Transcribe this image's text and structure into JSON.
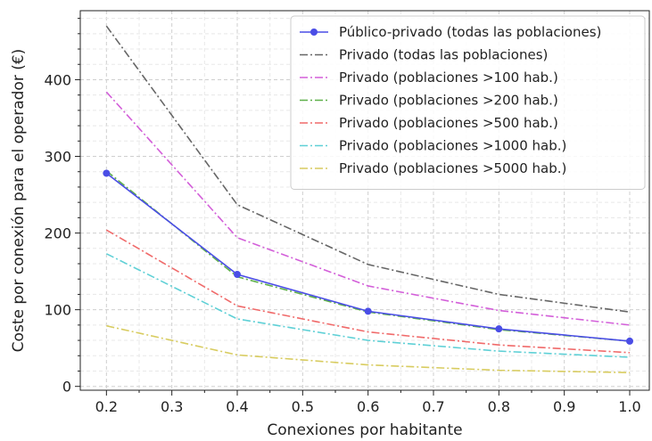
{
  "chart_data": {
    "type": "line",
    "xlabel": "Conexiones por habitante",
    "ylabel": "Coste por conexión para el operador (€)",
    "xlim": [
      0.16,
      1.03
    ],
    "ylim": [
      -5,
      490
    ],
    "x_ticks": [
      "0.2",
      "0.3",
      "0.4",
      "0.5",
      "0.6",
      "0.7",
      "0.8",
      "0.9",
      "1.0"
    ],
    "x_tick_values": [
      0.2,
      0.3,
      0.4,
      0.5,
      0.6,
      0.7,
      0.8,
      0.9,
      1.0
    ],
    "y_ticks": [
      "0",
      "100",
      "200",
      "300",
      "400"
    ],
    "y_tick_values": [
      0,
      100,
      200,
      300,
      400
    ],
    "grid": true,
    "legend_position": "top-right",
    "x": [
      0.2,
      0.4,
      0.6,
      0.8,
      1.0
    ],
    "series": [
      {
        "name": "Público-privado (todas las poblaciones)",
        "values": [
          278,
          146,
          98,
          75,
          59
        ],
        "color": "#4a4de6",
        "style": "solid-markers"
      },
      {
        "name": "Privado (todas las poblaciones)",
        "values": [
          470,
          237,
          159,
          120,
          97
        ],
        "color": "#666666",
        "style": "dashdot"
      },
      {
        "name": "Privado (poblaciones >100 hab.)",
        "values": [
          384,
          194,
          131,
          99,
          80
        ],
        "color": "#d35fd9",
        "style": "dashdot"
      },
      {
        "name": "Privado (poblaciones >200 hab.)",
        "values": [
          281,
          143,
          97,
          74,
          59
        ],
        "color": "#5fb04a",
        "style": "dashdot"
      },
      {
        "name": "Privado (poblaciones >500 hab.)",
        "values": [
          204,
          105,
          71,
          54,
          44
        ],
        "color": "#f06a6a",
        "style": "dashdot"
      },
      {
        "name": "Privado (poblaciones >1000 hab.)",
        "values": [
          173,
          88,
          60,
          46,
          38
        ],
        "color": "#5fd0d6",
        "style": "dashdot"
      },
      {
        "name": "Privado (poblaciones >5000 hab.)",
        "values": [
          79,
          41,
          28,
          21,
          18
        ],
        "color": "#d8cc60",
        "style": "dashdot"
      }
    ]
  }
}
